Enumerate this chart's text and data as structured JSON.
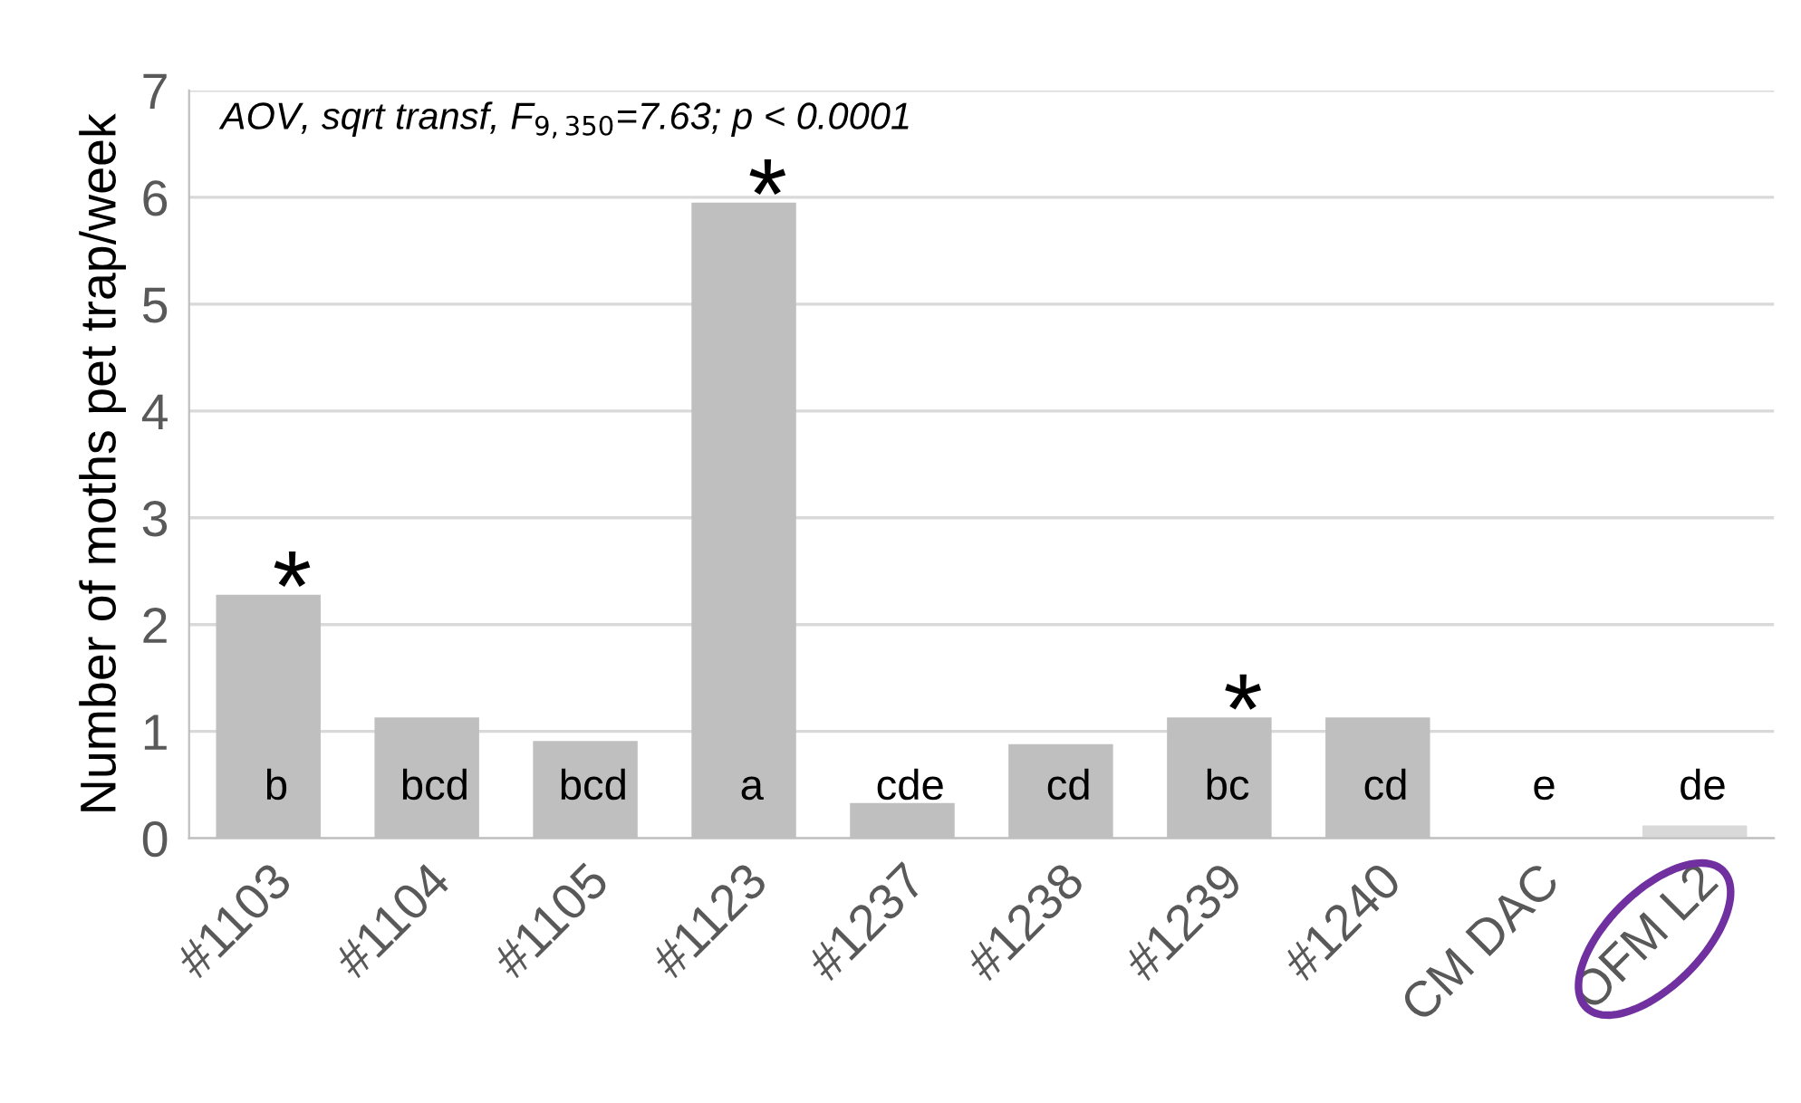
{
  "chart_data": {
    "type": "bar",
    "ylabel": "Number of moths pet trap/week",
    "categories": [
      "#1103",
      "#1104",
      "#1105",
      "#1123",
      "#1237",
      "#1238",
      "#1239",
      "#1240",
      "CM DAC",
      "OFM L2"
    ],
    "values": [
      2.28,
      1.13,
      0.91,
      5.95,
      0.33,
      0.88,
      1.13,
      1.13,
      0,
      0.12
    ],
    "colors": [
      "#bfbfbf",
      "#bfbfbf",
      "#bfbfbf",
      "#bfbfbf",
      "#bfbfbf",
      "#bfbfbf",
      "#bfbfbf",
      "#bfbfbf",
      "#bfbfbf",
      "#d9d9d9"
    ],
    "ylim": [
      0,
      7
    ],
    "yticks": [
      0,
      1,
      2,
      3,
      4,
      5,
      6,
      7
    ],
    "grid": "y",
    "legend": false,
    "annotations": [
      "AOV, sqrt transf, F$_{9,350}$=7.63; p < 0.0001",
      "b",
      "bcd",
      "bcd",
      "a",
      "cde",
      "cd",
      "bc",
      "cd",
      "e",
      "de",
      {
        "text": "*",
        "x": "#1103",
        "y": 2.28
      },
      {
        "text": "*",
        "x": "#1123",
        "y": 5.95
      },
      {
        "text": "*",
        "x": "#1239",
        "y": 1.13
      }
    ]
  }
}
